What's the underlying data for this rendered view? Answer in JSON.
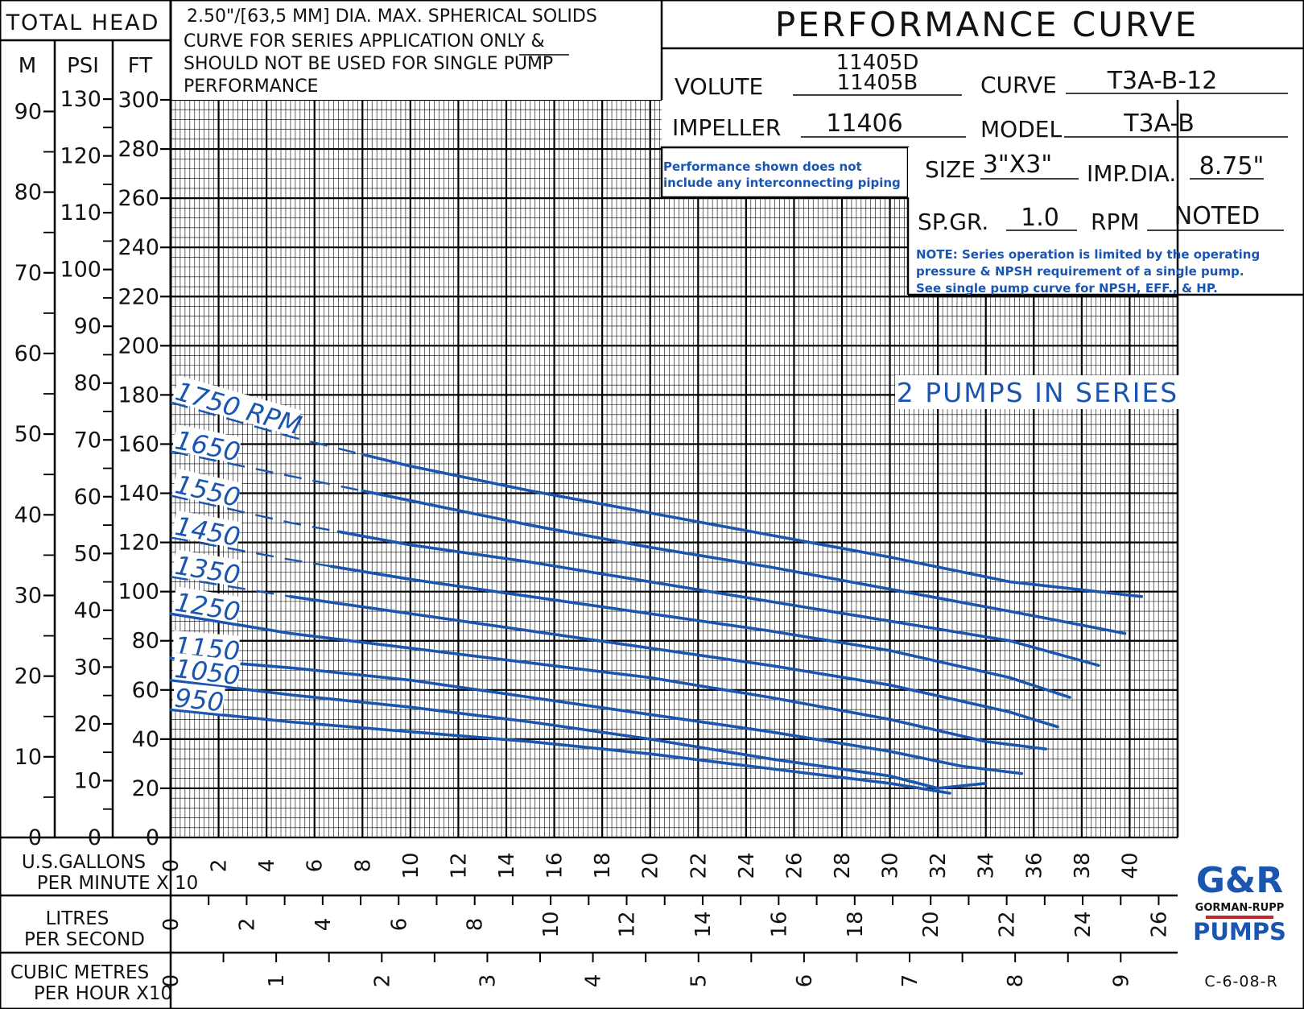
{
  "header": {
    "total_head": "TOTAL HEAD",
    "unit_m": "M",
    "unit_psi": "PSI",
    "unit_ft": "FT",
    "note_lines": [
      "2.50\"/[63,5 MM] DIA. MAX. SPHERICAL SOLIDS",
      "CURVE FOR SERIES APPLICATION ONLY &",
      "SHOULD NOT BE USED FOR SINGLE PUMP",
      "PERFORMANCE"
    ],
    "title": "PERFORMANCE CURVE"
  },
  "spec": {
    "volute_label": "VOLUTE",
    "volute_value_1": "11405D",
    "volute_value_2": "11405B",
    "curve_label": "CURVE",
    "curve_value": "T3A-B-12",
    "impeller_label": "IMPELLER",
    "impeller_value": "11406",
    "model_label": "MODEL",
    "model_value": "T3A-B",
    "size_label": "SIZE",
    "size_value": "3\"X3\"",
    "impdia_label": "IMP.DIA.",
    "impdia_value": "8.75\"",
    "spgr_label": "SP.GR.",
    "spgr_value": "1.0",
    "rpm_label": "RPM",
    "rpm_value": "NOTED",
    "piping_note_1": "Performance shown does not",
    "piping_note_2": "include any interconnecting piping",
    "series_note_1": "NOTE: Series operation is limited by the operating",
    "series_note_2": "pressure & NPSH requirement of a single pump.",
    "series_note_3": "See single pump curve for NPSH, EFF., & HP.",
    "series_banner": "2 PUMPS IN SERIES"
  },
  "axes": {
    "ft_ticks": [
      "0",
      "20",
      "40",
      "60",
      "80",
      "100",
      "120",
      "140",
      "160",
      "180",
      "200",
      "220",
      "240",
      "260",
      "280",
      "300"
    ],
    "m_ticks": [
      "0",
      "10",
      "20",
      "30",
      "40",
      "50",
      "60",
      "70",
      "80",
      "90"
    ],
    "psi_ticks": [
      "0",
      "10",
      "20",
      "30",
      "40",
      "50",
      "60",
      "70",
      "80",
      "90",
      "100",
      "110",
      "120",
      "130"
    ],
    "gpm_label_1": "U.S.GALLONS",
    "gpm_label_2": "PER MINUTE X 10",
    "gpm_ticks": [
      "0",
      "2",
      "4",
      "6",
      "8",
      "10",
      "12",
      "14",
      "16",
      "18",
      "20",
      "22",
      "24",
      "26",
      "28",
      "30",
      "32",
      "34",
      "36",
      "38",
      "40"
    ],
    "lps_label_1": "LITRES",
    "lps_label_2": "PER SECOND",
    "lps_ticks": [
      "0",
      "2",
      "4",
      "6",
      "8",
      "10",
      "12",
      "14",
      "16",
      "18",
      "20",
      "22",
      "24",
      "26"
    ],
    "cmh_label_1": "CUBIC METRES",
    "cmh_label_2": "PER HOUR X10",
    "cmh_ticks": [
      "0",
      "1",
      "2",
      "3",
      "4",
      "5",
      "6",
      "7",
      "8",
      "9"
    ]
  },
  "footer": {
    "logo_line_1": "G&R",
    "logo_line_2": "GORMAN-RUPP",
    "logo_line_3": "PUMPS",
    "drawing_no": "C-6-08-R"
  },
  "colors": {
    "curve": "#1a56b0",
    "grid": "#000000",
    "logo_red": "#c0272d"
  },
  "chart_data": {
    "type": "line",
    "xlabel": "U.S.GALLONS PER MINUTE X 10",
    "ylabel": "TOTAL HEAD FT",
    "xlim": [
      0,
      42
    ],
    "ylim": [
      0,
      300
    ],
    "grid": true,
    "series": [
      {
        "name": "1750 RPM",
        "label": "1750 RPM",
        "x": [
          0,
          5,
          10,
          15,
          20,
          25,
          30,
          35,
          40.5
        ],
        "y": [
          177,
          163,
          151,
          141,
          132,
          123,
          114,
          104,
          98
        ],
        "dashed_until": 8
      },
      {
        "name": "1650",
        "label": "1650",
        "x": [
          0,
          5,
          10,
          15,
          20,
          25,
          30,
          35,
          39.8
        ],
        "y": [
          157,
          147,
          137,
          127,
          118,
          110,
          101,
          92,
          83
        ],
        "dashed_until": 8
      },
      {
        "name": "1550",
        "label": "1550",
        "x": [
          0,
          5,
          10,
          15,
          20,
          25,
          30,
          35,
          38.7
        ],
        "y": [
          139,
          128,
          119,
          112,
          104,
          96,
          88,
          80,
          70
        ],
        "dashed_until": 7
      },
      {
        "name": "1450",
        "label": "1450",
        "x": [
          0,
          5,
          10,
          15,
          20,
          25,
          30,
          35,
          37.5
        ],
        "y": [
          122,
          113,
          105,
          98,
          91,
          84,
          76,
          65,
          57
        ],
        "dashed_until": 6.7
      },
      {
        "name": "1350",
        "label": "1350",
        "x": [
          0,
          5,
          10,
          15,
          20,
          25,
          30,
          35,
          37
        ],
        "y": [
          106,
          98,
          91,
          84,
          77,
          70,
          62,
          51,
          45
        ],
        "dashed_until": 5
      },
      {
        "name": "1250",
        "label": "1250",
        "x": [
          0,
          5,
          10,
          15,
          20,
          25,
          30,
          34,
          36.5
        ],
        "y": [
          91,
          83,
          77,
          71,
          65,
          57,
          48,
          39,
          36
        ]
      },
      {
        "name": "1150",
        "label": "1150",
        "x": [
          0,
          5,
          10,
          15,
          20,
          25,
          30,
          33,
          35.5
        ],
        "y": [
          73,
          69,
          64,
          57,
          50,
          43,
          35,
          29,
          26
        ]
      },
      {
        "name": "1050",
        "label": "1050",
        "x": [
          0,
          5,
          10,
          15,
          20,
          25,
          30,
          32,
          34
        ],
        "y": [
          64,
          58,
          53,
          47,
          40,
          32,
          25,
          20,
          22
        ]
      },
      {
        "name": "950",
        "label": "950",
        "x": [
          0,
          5,
          10,
          15,
          20,
          25,
          30,
          32.5
        ],
        "y": [
          52,
          47,
          43,
          39,
          34,
          28,
          22,
          18
        ]
      }
    ]
  }
}
